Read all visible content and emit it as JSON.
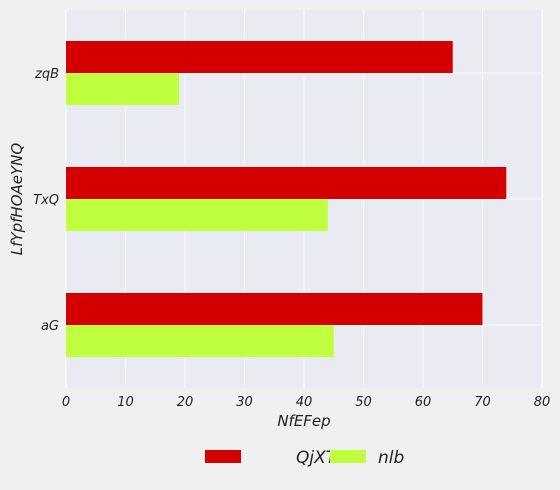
{
  "chart_data": {
    "type": "bar",
    "orientation": "horizontal",
    "title": "",
    "xlabel": "NfEFep",
    "ylabel": "LfYpfHOAeYNQ",
    "categories": [
      "aG",
      "TxQ",
      "zqB"
    ],
    "series": [
      {
        "name": "QjXT",
        "values": [
          70,
          74,
          65
        ],
        "color": "#d40000"
      },
      {
        "name": "nlb",
        "values": [
          45,
          44,
          19
        ],
        "color": "#bfff3f"
      }
    ],
    "xlim": [
      0,
      80
    ],
    "xticks": [
      0,
      10,
      20,
      30,
      40,
      50,
      60,
      70,
      80
    ],
    "grid": true,
    "legend_position": "bottom-center"
  },
  "colors": {
    "plot_background": "#eaeaf2",
    "page_background": "#f0f0f0",
    "grid": "#ffffff"
  }
}
